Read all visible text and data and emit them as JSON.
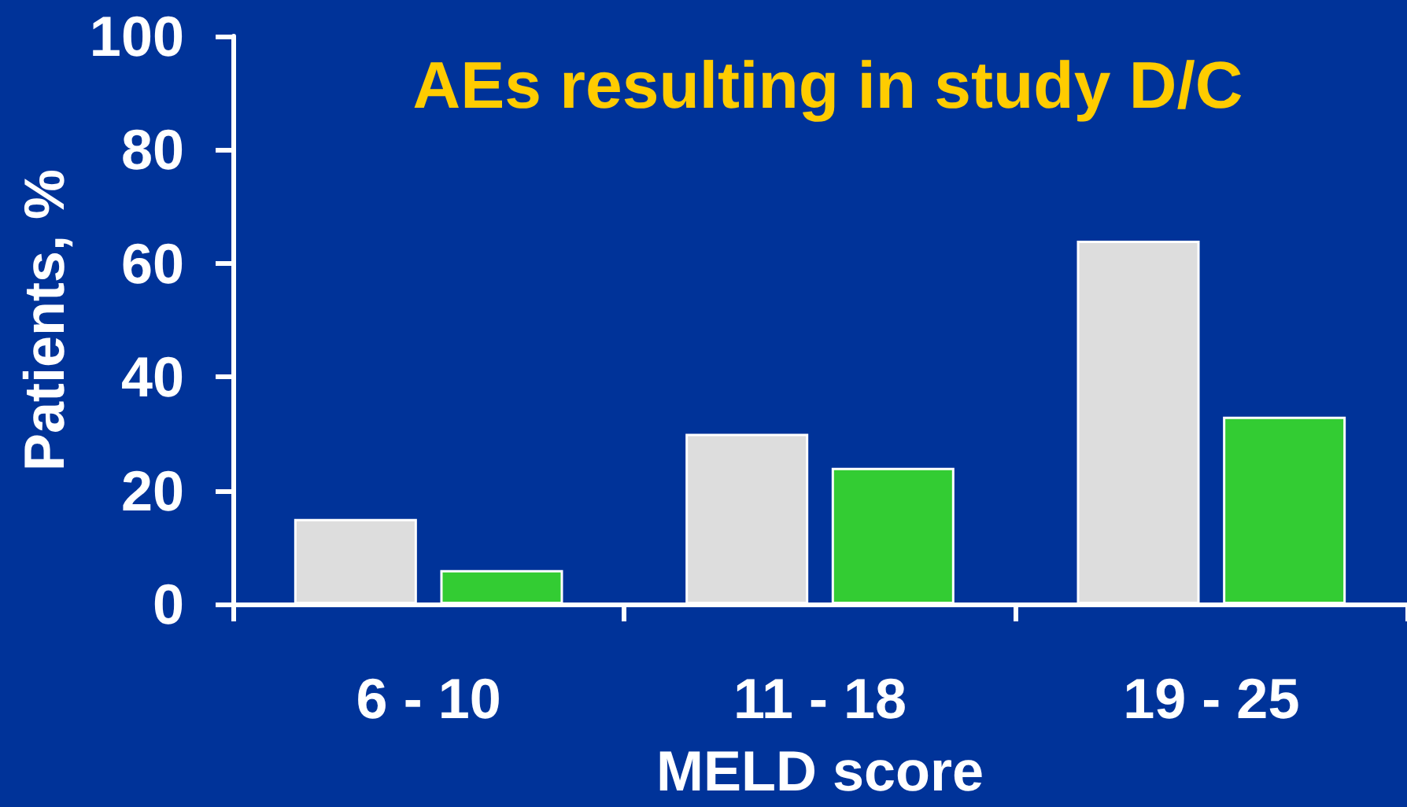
{
  "chart_data": {
    "type": "bar",
    "title": "AEs resulting in study D/C",
    "xlabel": "MELD score",
    "ylabel": "Patients, %",
    "categories": [
      "6 - 10",
      "11 - 18",
      "19 - 25"
    ],
    "series": [
      {
        "color": "#dddddd",
        "values": [
          15,
          30,
          64
        ]
      },
      {
        "color": "#33cc33",
        "values": [
          6,
          24,
          33
        ]
      }
    ],
    "ylim": [
      0,
      100
    ],
    "yticks": [
      0,
      20,
      40,
      60,
      80,
      100
    ]
  }
}
